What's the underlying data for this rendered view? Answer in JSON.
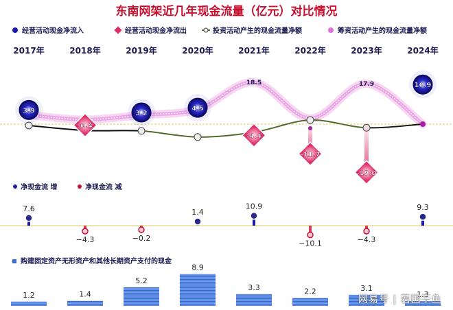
{
  "title": "东南网架近几年现金流量（亿元）对比情况",
  "watermark": "网易号 | 若国干鱼",
  "colors": {
    "inflow": "#1a1aa8",
    "outflow": "#e0306a",
    "investing": "#556b2f",
    "financing": "#e070e0",
    "net_up": "#1a1aa8",
    "net_down": "#c8102e",
    "bars": "#3a6fd0"
  },
  "chart_data": [
    {
      "type": "line",
      "categories": [
        "2017年",
        "2018年",
        "2019年",
        "2020年",
        "2021年",
        "2022年",
        "2023年",
        "2024年"
      ],
      "legend": [
        {
          "name": "经营活动现金净流入",
          "icon": "dot-icon"
        },
        {
          "name": "经营活动现金净流出",
          "icon": "diamond-icon"
        },
        {
          "name": "投资活动产生的现金流量净额",
          "icon": "line-dot-icon"
        },
        {
          "name": "筹资活动产生的现金流量净额",
          "icon": "dot-icon"
        }
      ],
      "operating": [
        3.9,
        -0.4,
        3.2,
        4.5,
        -4.4,
        -11.7,
        -19.0,
        10.9
      ],
      "operating_labels": [
        "3.9",
        "-0.4",
        "3.2",
        "4.5",
        "-4.4",
        "-11.7",
        "-19.0",
        "10.9"
      ],
      "financing": [
        4.0,
        2.0,
        4.0,
        6.5,
        18.5,
        2.5,
        17.9,
        0.0
      ],
      "financing_labels": [
        "",
        "",
        "",
        "",
        "18.5",
        "",
        "17.9",
        ""
      ],
      "investing": [
        -0.6,
        -2.8,
        -3.0,
        -5.7,
        -3.6,
        1.8,
        -1.6,
        0.0
      ]
    },
    {
      "type": "bar",
      "legend": [
        {
          "name": "净现金流 增",
          "icon": "dot-icon"
        },
        {
          "name": "净现金流 减",
          "icon": "dot-icon"
        }
      ],
      "values": [
        7.6,
        -4.3,
        -0.2,
        1.4,
        10.9,
        -10.1,
        -4.3,
        9.3
      ],
      "labels": [
        "7.6",
        "−4.3",
        "−0.2",
        "1.4",
        "10.9",
        "−10.1",
        "−4.3",
        "9.3"
      ]
    },
    {
      "type": "bar",
      "legend": [
        {
          "name": "购建固定资产无形资产和其他长期资产支付的现金",
          "icon": "square-icon"
        }
      ],
      "values": [
        1.2,
        1.4,
        5.2,
        8.9,
        3.3,
        2.2,
        3.1,
        1.3
      ],
      "labels": [
        "1.2",
        "1.4",
        "5.2",
        "8.9",
        "3.3",
        "2.2",
        "3.1",
        "1.3"
      ]
    }
  ]
}
